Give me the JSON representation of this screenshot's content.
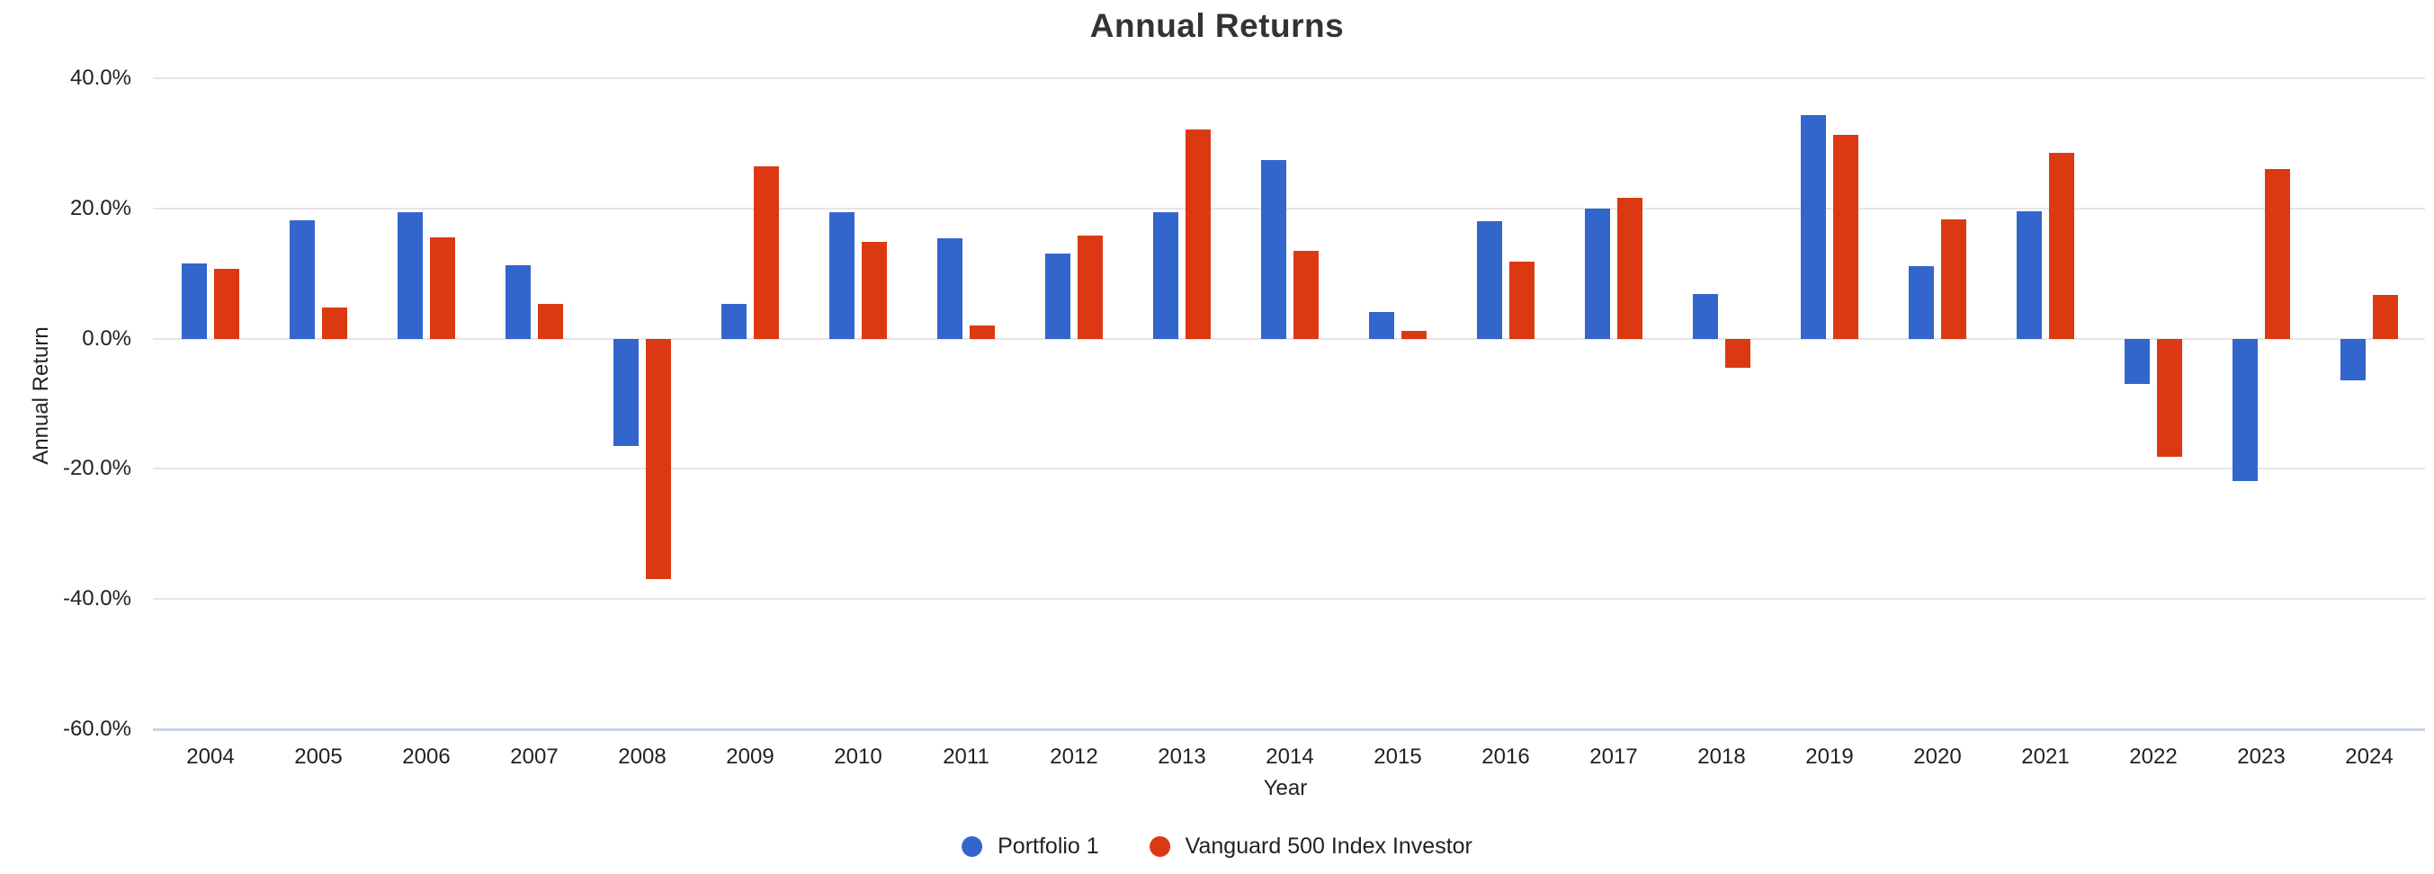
{
  "chart_data": {
    "type": "bar",
    "title": "Annual Returns",
    "xlabel": "Year",
    "ylabel": "Annual Return",
    "categories": [
      "2004",
      "2005",
      "2006",
      "2007",
      "2008",
      "2009",
      "2010",
      "2011",
      "2012",
      "2013",
      "2014",
      "2015",
      "2016",
      "2017",
      "2018",
      "2019",
      "2020",
      "2021",
      "2022",
      "2023",
      "2024"
    ],
    "series": [
      {
        "name": "Portfolio 1",
        "color": "#3366cc",
        "values": [
          11.6,
          18.2,
          19.5,
          11.3,
          -16.5,
          5.3,
          19.4,
          15.5,
          13.1,
          19.5,
          27.5,
          4.1,
          18.0,
          20.0,
          6.8,
          34.4,
          11.2,
          19.6,
          -6.9,
          -21.9,
          -6.4
        ]
      },
      {
        "name": "Vanguard 500 Index Investor",
        "color": "#dc3912",
        "values": [
          10.7,
          4.8,
          15.6,
          5.4,
          -37.0,
          26.5,
          14.9,
          2.0,
          15.8,
          32.2,
          13.5,
          1.2,
          11.8,
          21.7,
          -4.5,
          31.3,
          18.3,
          28.5,
          -18.2,
          26.1,
          6.7
        ]
      }
    ],
    "y_axis": {
      "min": -60,
      "max": 40,
      "tick_values": [
        40,
        20,
        0,
        -20,
        -40,
        -60
      ],
      "tick_labels": [
        "40.0%",
        "20.0%",
        "0.0%",
        "-20.0%",
        "-40.0%",
        "-60.0%"
      ]
    },
    "grid": true,
    "legend_position": "bottom"
  }
}
